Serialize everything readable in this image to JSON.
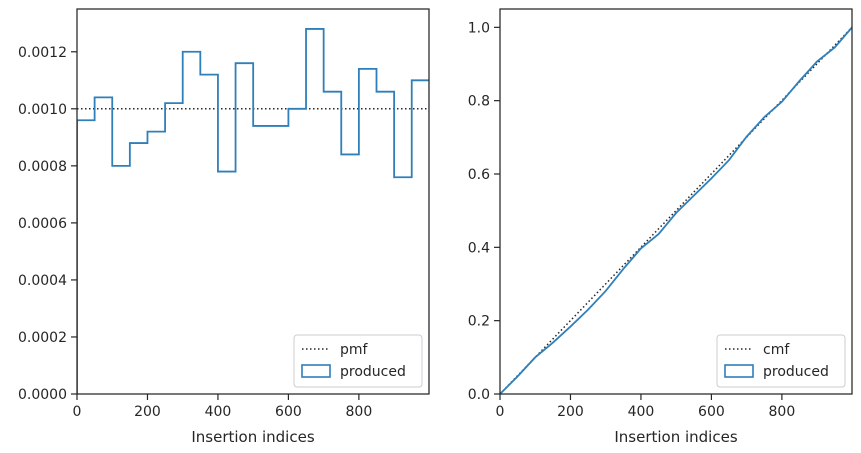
{
  "chart_data": [
    {
      "type": "line",
      "xlabel": "Insertion indices",
      "ylabel": "",
      "xlim": [
        0,
        999
      ],
      "ylim": [
        0,
        0.00135
      ],
      "xticks": [
        0,
        200,
        400,
        600,
        800
      ],
      "xtick_labels": [
        "0",
        "200",
        "400",
        "600",
        "800"
      ],
      "yticks": [
        0,
        0.0002,
        0.0004,
        0.0006,
        0.0008,
        0.001,
        0.0012
      ],
      "ytick_labels": [
        "0.0000",
        "0.0002",
        "0.0004",
        "0.0006",
        "0.0008",
        "0.0010",
        "0.0012"
      ],
      "grid": false,
      "legend_position": "lower right",
      "series": [
        {
          "name": "pmf",
          "style": "dotted",
          "color": "#262626",
          "x": [
            0,
            999
          ],
          "y": [
            0.001,
            0.001
          ]
        },
        {
          "name": "produced",
          "style": "step",
          "color": "#2f7fba",
          "bin_edges": [
            0,
            50,
            100,
            150,
            200,
            250,
            300,
            350,
            400,
            450,
            500,
            550,
            600,
            650,
            700,
            750,
            800,
            850,
            900,
            950,
            1000
          ],
          "values": [
            0.00096,
            0.00104,
            0.0008,
            0.00088,
            0.00092,
            0.00102,
            0.0012,
            0.00112,
            0.00078,
            0.00116,
            0.00094,
            0.00094,
            0.001,
            0.00128,
            0.00106,
            0.00084,
            0.00114,
            0.00106,
            0.00076,
            0.0011
          ]
        }
      ]
    },
    {
      "type": "line",
      "xlabel": "Insertion indices",
      "ylabel": "",
      "xlim": [
        0,
        999
      ],
      "ylim": [
        0,
        1.05
      ],
      "xticks": [
        0,
        200,
        400,
        600,
        800
      ],
      "xtick_labels": [
        "0",
        "200",
        "400",
        "600",
        "800"
      ],
      "yticks": [
        0,
        0.2,
        0.4,
        0.6,
        0.8,
        1.0
      ],
      "ytick_labels": [
        "0.0",
        "0.2",
        "0.4",
        "0.6",
        "0.8",
        "1.0"
      ],
      "grid": false,
      "legend_position": "lower right",
      "series": [
        {
          "name": "cmf",
          "style": "dotted",
          "color": "#262626",
          "x": [
            0,
            999
          ],
          "y": [
            0,
            1.0
          ]
        },
        {
          "name": "produced",
          "style": "line",
          "color": "#2f7fba",
          "x": [
            0,
            50,
            100,
            150,
            200,
            250,
            300,
            350,
            400,
            450,
            500,
            550,
            600,
            650,
            700,
            750,
            800,
            850,
            900,
            950,
            999
          ],
          "y": [
            0,
            0.048,
            0.1,
            0.14,
            0.184,
            0.23,
            0.281,
            0.341,
            0.397,
            0.436,
            0.494,
            0.541,
            0.588,
            0.638,
            0.702,
            0.755,
            0.797,
            0.854,
            0.907,
            0.945,
            1.0
          ]
        }
      ]
    }
  ]
}
